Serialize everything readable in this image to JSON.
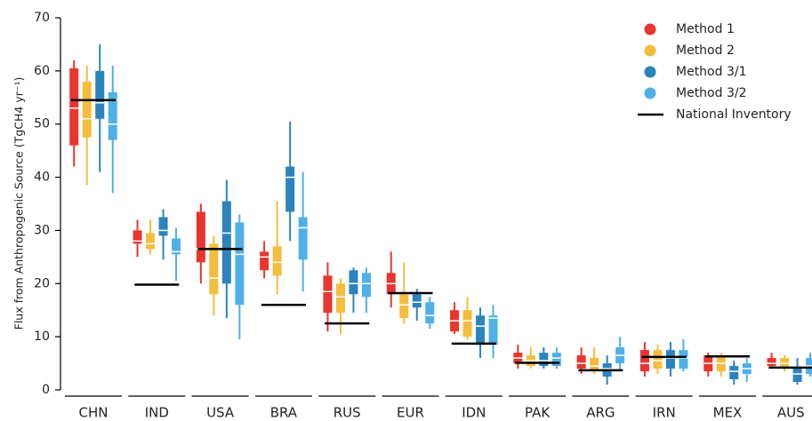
{
  "chart_data": {
    "type": "box",
    "y_label": "Flux from Anthropogenic Source (TgCH4 yr⁻¹)",
    "categories": [
      "CHN",
      "IND",
      "USA",
      "BRA",
      "RUS",
      "EUR",
      "IDN",
      "PAK",
      "ARG",
      "IRN",
      "MEX",
      "AUS"
    ],
    "ylim": [
      0,
      70
    ],
    "yticks": [
      0,
      10,
      20,
      30,
      40,
      50,
      60,
      70
    ],
    "legend_position": "upper right",
    "series": [
      {
        "name": "Method 1",
        "color": "#e8352e",
        "min": [
          42,
          25,
          20,
          21,
          11,
          15.5,
          10.5,
          4,
          3,
          2.5,
          2.5,
          4
        ],
        "q1": [
          46,
          27.5,
          24,
          22.5,
          14.5,
          18,
          11,
          5,
          4,
          3.5,
          3.5,
          4.5
        ],
        "median": [
          53,
          28,
          26.5,
          25,
          18.5,
          20,
          13,
          6,
          5,
          5,
          5,
          5
        ],
        "q3": [
          60.5,
          30,
          33.5,
          26,
          21.5,
          22,
          15,
          7,
          6.5,
          7.5,
          6.5,
          6
        ],
        "max": [
          62,
          32,
          35,
          28,
          24,
          26,
          16.5,
          8.5,
          8,
          9,
          7,
          7
        ]
      },
      {
        "name": "Method 2",
        "color": "#f5bd3c",
        "min": [
          38.5,
          25.5,
          14,
          18,
          10.5,
          12.5,
          9.5,
          4,
          3,
          3,
          2.5,
          3.5
        ],
        "q1": [
          47.5,
          26.5,
          18,
          21.5,
          14.5,
          13.5,
          10,
          4.5,
          3.5,
          4,
          3.5,
          4
        ],
        "median": [
          51,
          27.5,
          21,
          24,
          17.5,
          16,
          13,
          5.5,
          4.5,
          5.5,
          5,
          5
        ],
        "q3": [
          58,
          29.5,
          27.5,
          27,
          20,
          18,
          15,
          6.5,
          6,
          7.5,
          6.5,
          6
        ],
        "max": [
          61,
          32,
          29,
          35.5,
          21,
          24,
          17.5,
          8,
          8,
          8.5,
          7,
          6.5
        ]
      },
      {
        "name": "Method 3/1",
        "color": "#2b84bd",
        "min": [
          41,
          24.5,
          13.5,
          28,
          14.5,
          13,
          6,
          4,
          1,
          2.5,
          1,
          1
        ],
        "q1": [
          51,
          29,
          20,
          33.5,
          18,
          15.5,
          8.5,
          4.5,
          2.5,
          4,
          2,
          1.5
        ],
        "median": [
          54,
          30,
          29.5,
          40,
          20,
          16.5,
          12,
          5.5,
          4,
          6,
          3.5,
          3
        ],
        "q3": [
          60,
          32.5,
          35.5,
          42,
          22.5,
          18,
          14,
          7,
          5,
          7.5,
          4.5,
          4
        ],
        "max": [
          65,
          34,
          39.5,
          50.5,
          23,
          19,
          15.5,
          8,
          6.5,
          9,
          5.5,
          6
        ]
      },
      {
        "name": "Method 3/2",
        "color": "#4fb0e8",
        "min": [
          37,
          20.5,
          9.5,
          18.5,
          14.5,
          11.5,
          6,
          4,
          3.5,
          3.5,
          1.5,
          2.5
        ],
        "q1": [
          47,
          25.5,
          16,
          24.5,
          17.5,
          12.5,
          8.5,
          4.5,
          5,
          4,
          3,
          3
        ],
        "median": [
          50,
          26,
          25.5,
          30.5,
          20,
          14,
          13.5,
          6,
          6.5,
          6,
          4,
          4.5
        ],
        "q3": [
          56,
          28.5,
          31.5,
          32.5,
          22,
          16.5,
          14,
          7,
          8,
          7.5,
          5,
          6
        ],
        "max": [
          61,
          30.5,
          33,
          41,
          23,
          17.5,
          16,
          8,
          10,
          9.5,
          6,
          7
        ]
      }
    ],
    "reference": {
      "name": "National Inventory",
      "color": "#000000",
      "values": [
        54.5,
        19.8,
        26.5,
        16,
        12.5,
        18.2,
        8.7,
        5.1,
        3.7,
        6.2,
        6.3,
        4.2
      ]
    }
  }
}
